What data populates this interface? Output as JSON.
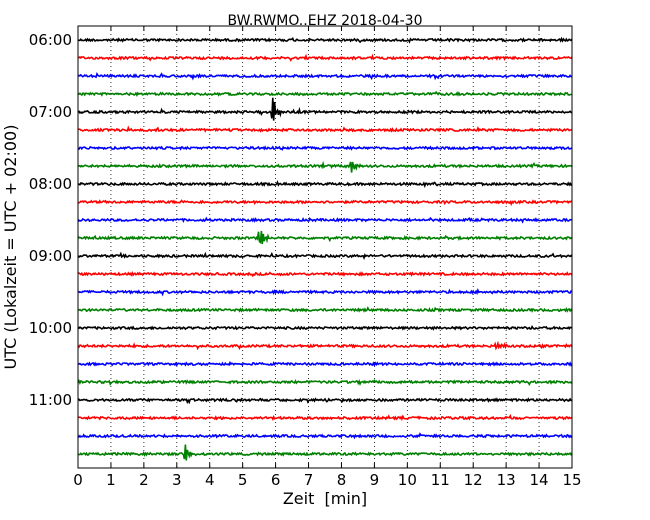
{
  "chart_data": {
    "type": "line",
    "title": "BW.RWMO..EHZ 2018-04-30",
    "xlabel": "Zeit  [min]",
    "ylabel": "UTC (Lokalzeit = UTC + 02:00)",
    "xlim": [
      0,
      15
    ],
    "x_ticks": [
      "0",
      "1",
      "2",
      "3",
      "4",
      "5",
      "6",
      "7",
      "8",
      "9",
      "10",
      "11",
      "12",
      "13",
      "14",
      "15"
    ],
    "y_ticks": [
      {
        "label": "06:00",
        "trace": 0
      },
      {
        "label": "07:00",
        "trace": 4
      },
      {
        "label": "08:00",
        "trace": 8
      },
      {
        "label": "09:00",
        "trace": 12
      },
      {
        "label": "10:00",
        "trace": 16
      },
      {
        "label": "11:00",
        "trace": 20
      }
    ],
    "trace_interval_min": 15,
    "grid": true,
    "colors": [
      "#000000",
      "#ff0000",
      "#0000ff",
      "#008000"
    ],
    "traces": [
      {
        "start": "06:00",
        "color": "#000000",
        "events": []
      },
      {
        "start": "06:15",
        "color": "#ff0000",
        "events": []
      },
      {
        "start": "06:30",
        "color": "#0000ff",
        "events": []
      },
      {
        "start": "06:45",
        "color": "#008000",
        "events": []
      },
      {
        "start": "07:00",
        "color": "#000000",
        "events": [
          {
            "t_min": 5.9,
            "amplitude": 1.0
          }
        ]
      },
      {
        "start": "07:15",
        "color": "#ff0000",
        "events": []
      },
      {
        "start": "07:30",
        "color": "#0000ff",
        "events": []
      },
      {
        "start": "07:45",
        "color": "#008000",
        "events": [
          {
            "t_min": 8.3,
            "amplitude": 0.45
          }
        ]
      },
      {
        "start": "08:00",
        "color": "#000000",
        "events": []
      },
      {
        "start": "08:15",
        "color": "#ff0000",
        "events": []
      },
      {
        "start": "08:30",
        "color": "#0000ff",
        "events": []
      },
      {
        "start": "08:45",
        "color": "#008000",
        "events": [
          {
            "t_min": 5.5,
            "amplitude": 1.0
          }
        ]
      },
      {
        "start": "09:00",
        "color": "#000000",
        "events": []
      },
      {
        "start": "09:15",
        "color": "#ff0000",
        "events": []
      },
      {
        "start": "09:30",
        "color": "#0000ff",
        "events": []
      },
      {
        "start": "09:45",
        "color": "#008000",
        "events": []
      },
      {
        "start": "10:00",
        "color": "#000000",
        "events": []
      },
      {
        "start": "10:15",
        "color": "#ff0000",
        "events": [
          {
            "t_min": 12.7,
            "amplitude": 0.3
          }
        ]
      },
      {
        "start": "10:30",
        "color": "#0000ff",
        "events": []
      },
      {
        "start": "10:45",
        "color": "#008000",
        "events": []
      },
      {
        "start": "11:00",
        "color": "#000000",
        "events": []
      },
      {
        "start": "11:15",
        "color": "#ff0000",
        "events": []
      },
      {
        "start": "11:30",
        "color": "#0000ff",
        "events": []
      },
      {
        "start": "11:45",
        "color": "#008000",
        "events": [
          {
            "t_min": 3.25,
            "amplitude": 0.6
          }
        ]
      }
    ]
  }
}
